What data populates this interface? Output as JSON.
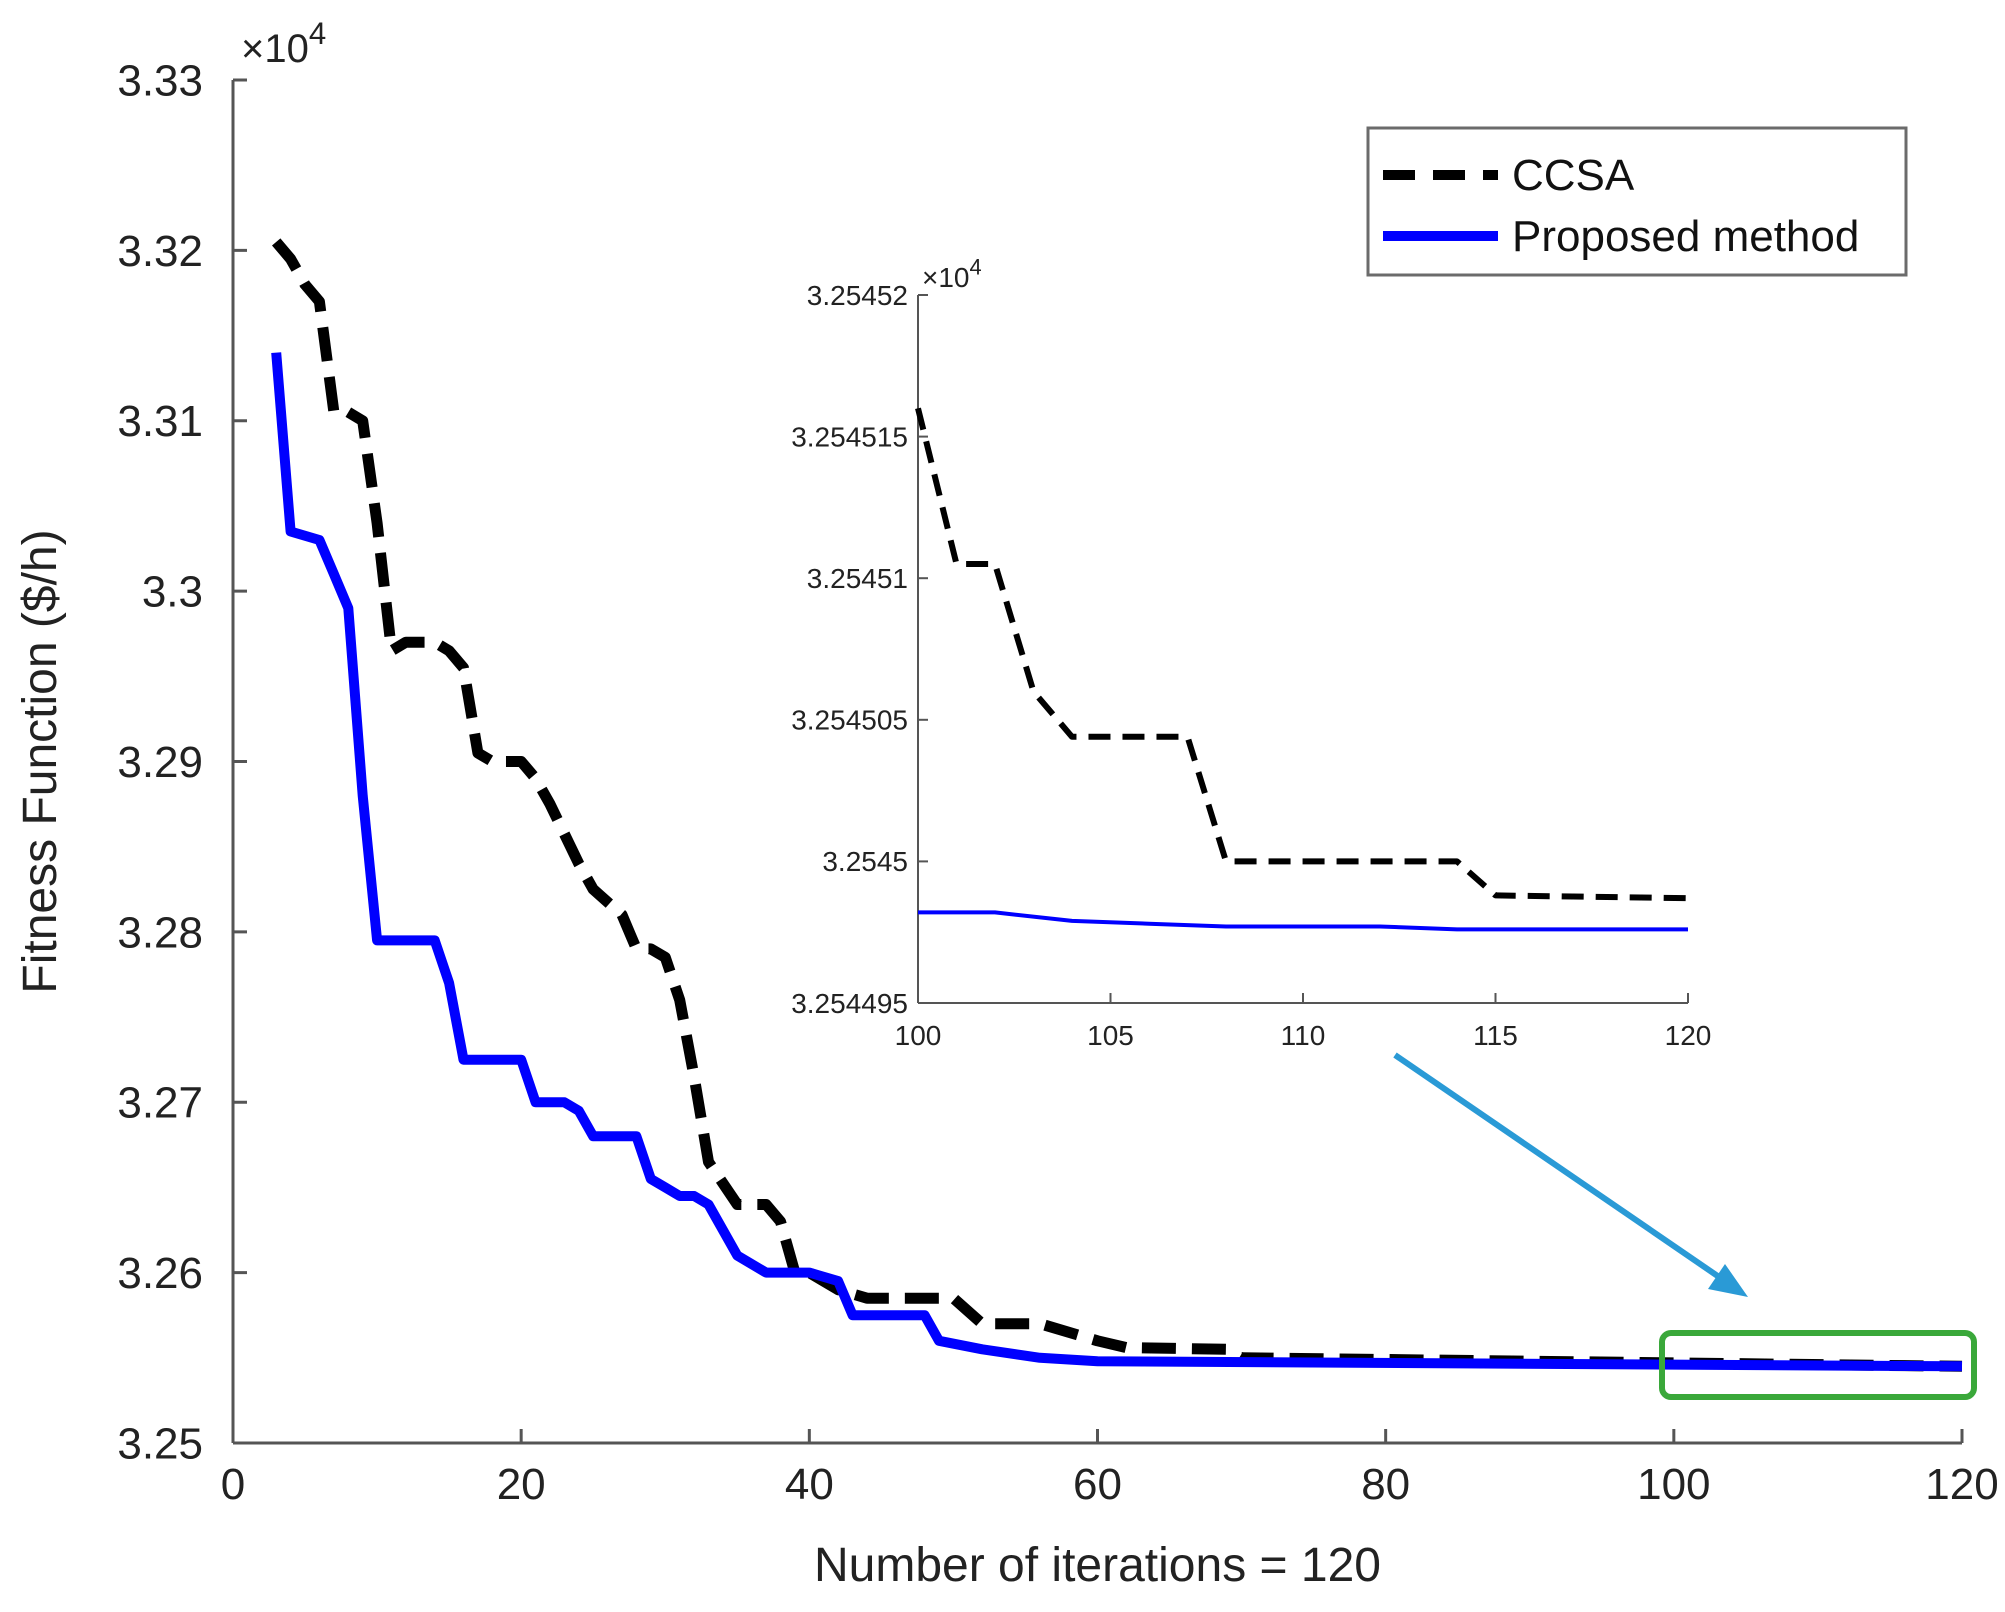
{
  "chart_data": [
    {
      "type": "line",
      "title": "",
      "xlabel": "Number of iterations = 120",
      "ylabel": "Fitness Function ($/h)",
      "y_multiplier_base": "×10",
      "y_multiplier_exp": "4",
      "xlim": [
        0,
        120
      ],
      "ylim": [
        3.25,
        3.33
      ],
      "xticks": [
        0,
        20,
        40,
        60,
        80,
        100,
        120
      ],
      "xtick_labels": [
        "0",
        "20",
        "40",
        "60",
        "80",
        "100",
        "120"
      ],
      "yticks": [
        3.25,
        3.26,
        3.27,
        3.28,
        3.29,
        3.3,
        3.31,
        3.32,
        3.33
      ],
      "ytick_labels": [
        "3.25",
        "3.26",
        "3.27",
        "3.28",
        "3.29",
        "3.3",
        "3.31",
        "3.32",
        "3.33"
      ],
      "grid": false,
      "legend_position": "top-right",
      "series": [
        {
          "name": "CCSA",
          "style": "dashed",
          "color": "#000000",
          "points": [
            [
              3,
              3.3205
            ],
            [
              4,
              3.3195
            ],
            [
              5,
              3.318
            ],
            [
              6,
              3.317
            ],
            [
              7,
              3.3105
            ],
            [
              8,
              3.3105
            ],
            [
              9,
              3.31
            ],
            [
              10,
              3.304
            ],
            [
              11,
              3.2965
            ],
            [
              12,
              3.297
            ],
            [
              14,
              3.297
            ],
            [
              15,
              3.2965
            ],
            [
              16,
              3.2955
            ],
            [
              17,
              3.2905
            ],
            [
              18,
              3.29
            ],
            [
              20,
              3.29
            ],
            [
              21,
              3.289
            ],
            [
              22,
              3.2875
            ],
            [
              24,
              3.284
            ],
            [
              25,
              3.2825
            ],
            [
              27,
              3.281
            ],
            [
              28,
              3.279
            ],
            [
              29,
              3.279
            ],
            [
              30,
              3.2785
            ],
            [
              31,
              3.276
            ],
            [
              32,
              3.2715
            ],
            [
              33,
              3.2665
            ],
            [
              35,
              3.264
            ],
            [
              37,
              3.264
            ],
            [
              38,
              3.263
            ],
            [
              39,
              3.26
            ],
            [
              40,
              3.26
            ],
            [
              42,
              3.259
            ],
            [
              44,
              3.2585
            ],
            [
              50,
              3.2585
            ],
            [
              52,
              3.257
            ],
            [
              56,
              3.257
            ],
            [
              60,
              3.256
            ],
            [
              62,
              3.2556
            ],
            [
              69,
              3.2555
            ],
            [
              70,
              3.255
            ],
            [
              120,
              3.2545
            ]
          ]
        },
        {
          "name": "Proposed method",
          "style": "solid",
          "color": "#0000ff",
          "points": [
            [
              3,
              3.314
            ],
            [
              4,
              3.3035
            ],
            [
              6,
              3.303
            ],
            [
              7,
              3.301
            ],
            [
              8,
              3.299
            ],
            [
              9,
              3.288
            ],
            [
              10,
              3.2795
            ],
            [
              14,
              3.2795
            ],
            [
              15,
              3.277
            ],
            [
              16,
              3.2725
            ],
            [
              20,
              3.2725
            ],
            [
              21,
              3.27
            ],
            [
              23,
              3.27
            ],
            [
              24,
              3.2695
            ],
            [
              25,
              3.268
            ],
            [
              28,
              3.268
            ],
            [
              29,
              3.2655
            ],
            [
              30,
              3.265
            ],
            [
              31,
              3.2645
            ],
            [
              32,
              3.2645
            ],
            [
              33,
              3.264
            ],
            [
              35,
              3.261
            ],
            [
              37,
              3.26
            ],
            [
              40,
              3.26
            ],
            [
              42,
              3.2595
            ],
            [
              43,
              3.2575
            ],
            [
              48,
              3.2575
            ],
            [
              49,
              3.256
            ],
            [
              52,
              3.2555
            ],
            [
              56,
              3.255
            ],
            [
              60,
              3.2548
            ],
            [
              120,
              3.2545
            ]
          ]
        }
      ],
      "annotations": [
        {
          "kind": "highlight-box",
          "color": "#3aa83a",
          "x_range": [
            100,
            120
          ],
          "y_range": [
            3.252,
            3.257
          ]
        },
        {
          "kind": "arrow",
          "color": "#2a9ad6",
          "from": "inset",
          "to": "highlight-box"
        }
      ]
    },
    {
      "type": "line",
      "role": "inset",
      "xlim": [
        100,
        120
      ],
      "ylim": [
        3.254495,
        3.25452
      ],
      "y_multiplier_base": "×10",
      "y_multiplier_exp": "4",
      "xticks": [
        100,
        105,
        110,
        115,
        120
      ],
      "xtick_labels": [
        "100",
        "105",
        "110",
        "115",
        "120"
      ],
      "yticks": [
        3.254495,
        3.2545,
        3.254505,
        3.25451,
        3.254515,
        3.25452
      ],
      "ytick_labels": [
        "3.254495",
        "3.2545",
        "3.254505",
        "3.25451",
        "3.254515",
        "3.25452"
      ],
      "grid": false,
      "series": [
        {
          "name": "CCSA",
          "style": "dashed",
          "color": "#000000",
          "points": [
            [
              100,
              3.254516
            ],
            [
              101,
              3.2545105
            ],
            [
              102,
              3.2545105
            ],
            [
              103,
              3.254506
            ],
            [
              104,
              3.2545044
            ],
            [
              106,
              3.2545044
            ],
            [
              107,
              3.2545044
            ],
            [
              108,
              3.2545
            ],
            [
              114,
              3.2545
            ],
            [
              115,
              3.2544988
            ],
            [
              120,
              3.2544987
            ]
          ]
        },
        {
          "name": "Proposed method",
          "style": "solid",
          "color": "#0000ff",
          "points": [
            [
              100,
              3.2544982
            ],
            [
              102,
              3.2544982
            ],
            [
              104,
              3.2544979
            ],
            [
              106,
              3.2544978
            ],
            [
              108,
              3.2544977
            ],
            [
              112,
              3.2544977
            ],
            [
              114,
              3.2544976
            ],
            [
              120,
              3.2544976
            ]
          ]
        }
      ]
    }
  ]
}
